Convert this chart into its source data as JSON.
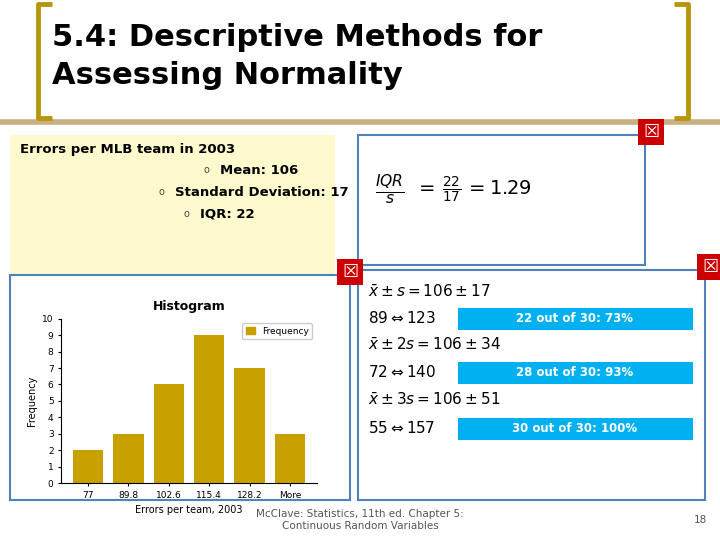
{
  "title_line1": "5.4: Descriptive Methods for",
  "title_line2": "Assessing Normality",
  "title_fontsize": 22,
  "title_color": "#000000",
  "background_color": "#ffffff",
  "info_box_bg": "#fffacd",
  "info_box_text": "Errors per MLB team in 2003",
  "info_items": [
    "Mean: 106",
    "Standard Deviation: 17",
    "IQR: 22"
  ],
  "hist_title": "Histogram",
  "hist_categories": [
    "77",
    "89.8",
    "102.6",
    "115.4",
    "128.2",
    "More"
  ],
  "hist_values": [
    2,
    3,
    6,
    9,
    7,
    3
  ],
  "hist_bar_color": "#c8a000",
  "hist_xlabel": "Errors per team, 2003",
  "hist_ylabel": "Frequency",
  "hist_ylim": [
    0,
    10
  ],
  "hist_yticks": [
    0,
    1,
    2,
    3,
    4,
    5,
    6,
    7,
    8,
    9,
    10
  ],
  "bracket_color": "#b8960c",
  "red_icon_color": "#cc0000",
  "right_box_highlights": [
    {
      "text": "22 out of 30: 73%"
    },
    {
      "text": "28 out of 30: 93%"
    },
    {
      "text": "30 out of 30: 100%"
    }
  ],
  "highlight_color": "#00b0f0",
  "footer_text": "McClave: Statistics, 11th ed. Chapter 5:\nContinuous Random Variables",
  "footer_page": "18",
  "footer_fontsize": 7.5,
  "footer_color": "#555555",
  "hist_box_border": "#4f81bd",
  "right_box_border": "#4f81bd",
  "iqr_box_border": "#4f81bd",
  "divider_color": "#c8b080"
}
